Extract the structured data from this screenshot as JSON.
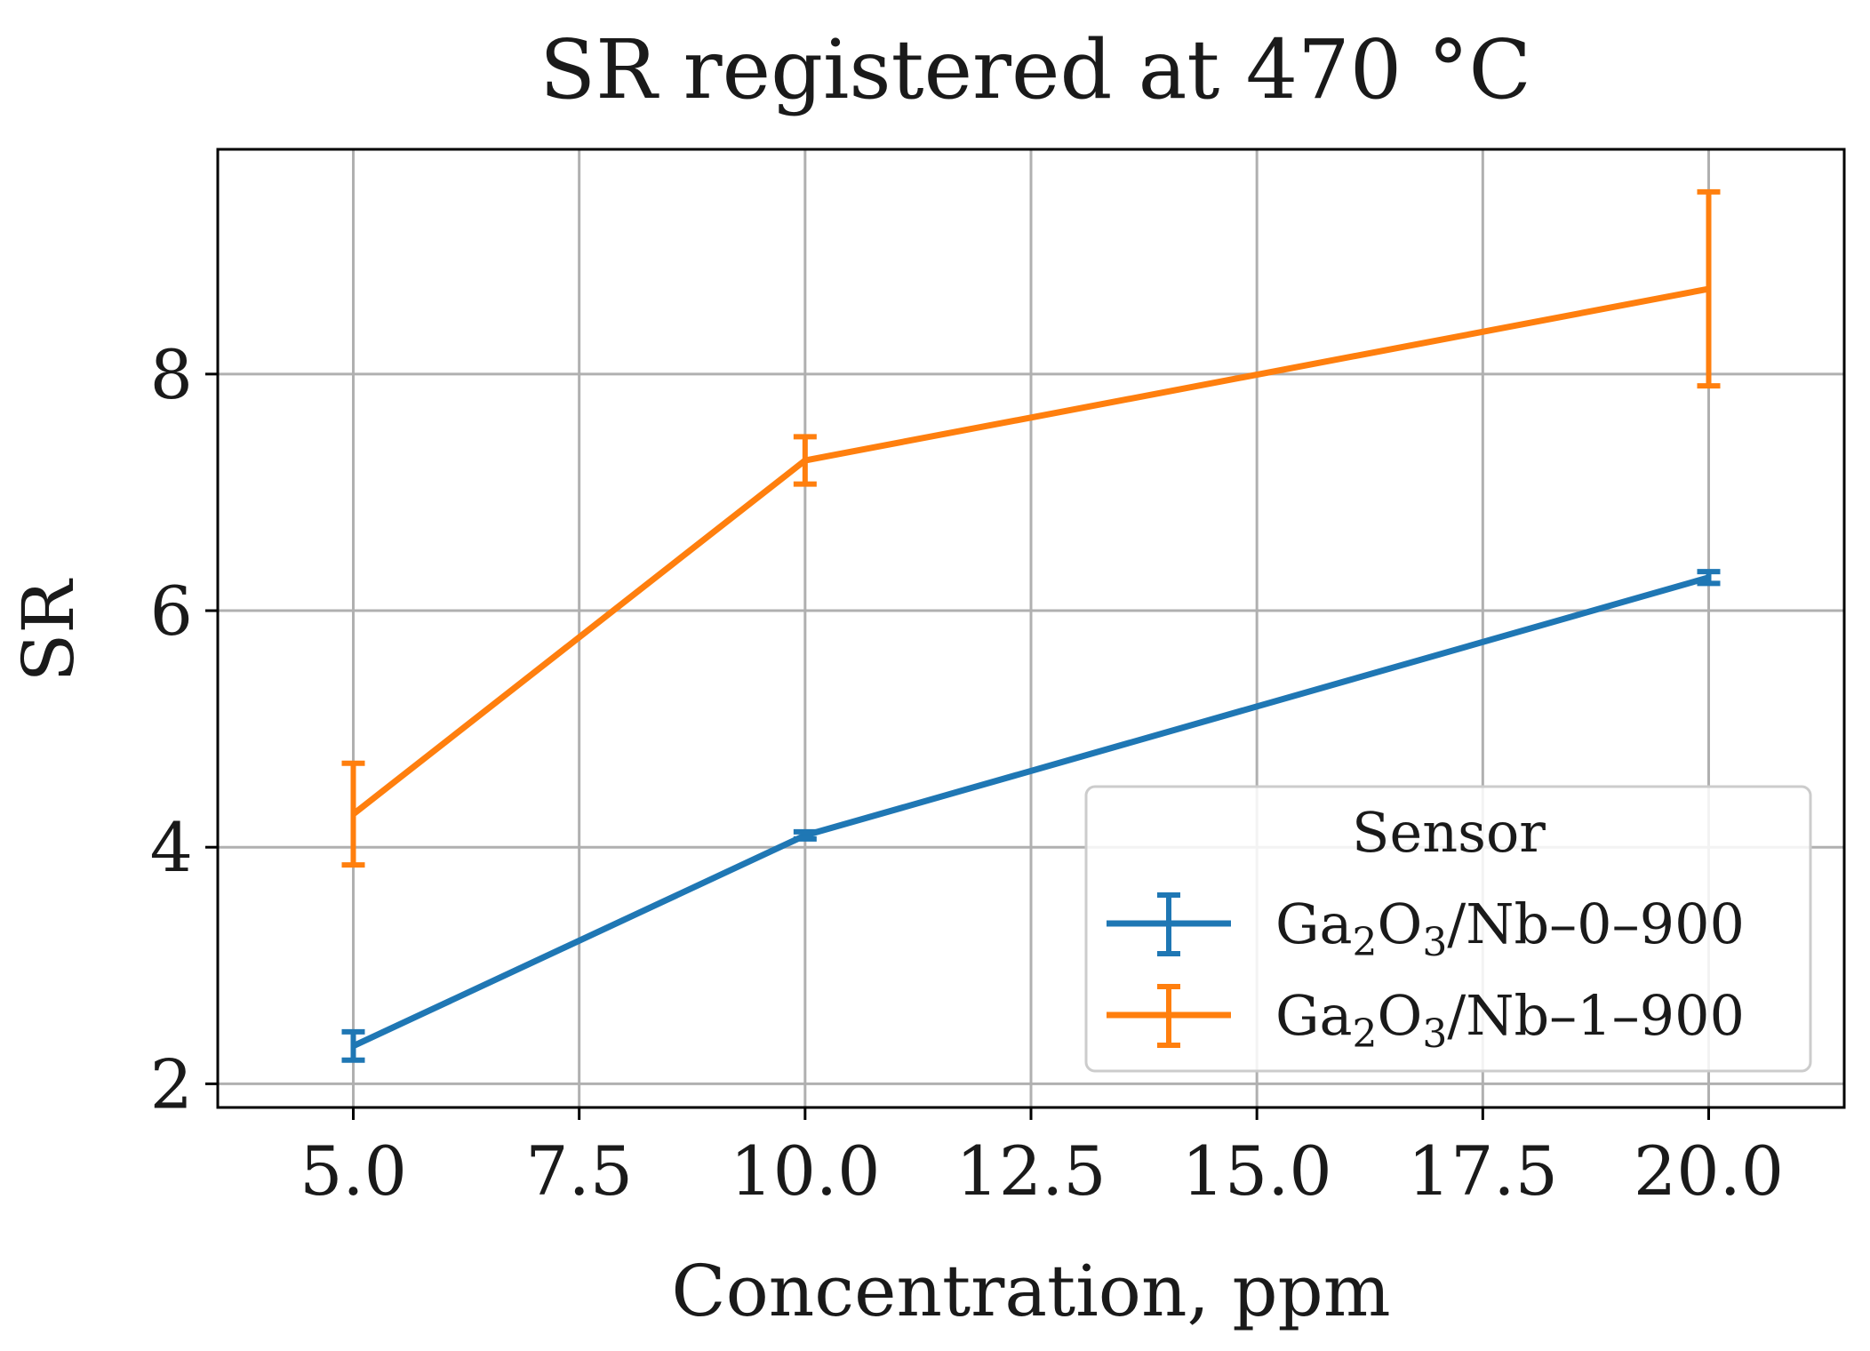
{
  "chart_data": {
    "type": "line",
    "title": "SR registered at 470 °C",
    "xlabel": "Concentration, ppm",
    "ylabel": "SR",
    "xlim": [
      3.5,
      21.5
    ],
    "ylim": [
      1.8,
      9.9
    ],
    "xticks": [
      5.0,
      7.5,
      10.0,
      12.5,
      15.0,
      17.5,
      20.0
    ],
    "xtick_labels": [
      "5.0",
      "7.5",
      "10.0",
      "12.5",
      "15.0",
      "17.5",
      "20.0"
    ],
    "yticks": [
      2,
      4,
      6,
      8
    ],
    "ytick_labels": [
      "2",
      "4",
      "6",
      "8"
    ],
    "grid": true,
    "legend": {
      "title": "Sensor",
      "position": "lower-right"
    },
    "series": [
      {
        "name": "Ga2O3/Nb–0–900",
        "name_parts": {
          "a": "Ga",
          "s1": "2",
          "b": "O",
          "s2": "3",
          "c": "/Nb–0–900"
        },
        "color": "#1f77b4",
        "x": [
          5,
          10,
          20
        ],
        "y": [
          2.32,
          4.1,
          6.28
        ],
        "err": [
          0.12,
          0.03,
          0.05
        ]
      },
      {
        "name": "Ga2O3/Nb–1–900",
        "name_parts": {
          "a": "Ga",
          "s1": "2",
          "b": "O",
          "s2": "3",
          "c": "/Nb–1–900"
        },
        "color": "#ff7f0e",
        "x": [
          5,
          10,
          20
        ],
        "y": [
          4.28,
          7.27,
          8.72
        ],
        "err": [
          0.43,
          0.2,
          0.82
        ]
      }
    ]
  }
}
